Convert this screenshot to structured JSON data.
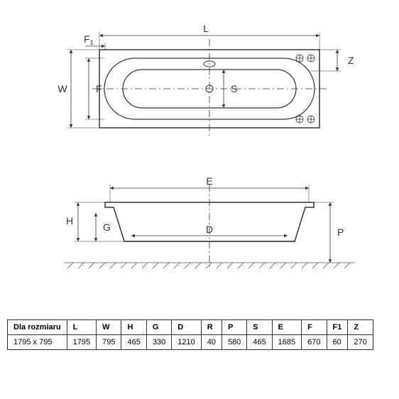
{
  "diagram": {
    "stroke_color": "#333333",
    "stroke_width": 1.2,
    "dash_pattern": "6 4",
    "background": "#ffffff",
    "hatch_color": "#555555"
  },
  "labels": {
    "L": "L",
    "W": "W",
    "F": "F",
    "F1": "F",
    "F1sub": "1",
    "Z": "Z",
    "S": "S",
    "E": "E",
    "H": "H",
    "G": "G",
    "D": "D",
    "P": "P"
  },
  "table": {
    "header_label": "Dla rozmiaru",
    "columns": [
      "L",
      "W",
      "H",
      "G",
      "D",
      "R",
      "P",
      "S",
      "E",
      "F",
      "F1",
      "Z"
    ],
    "row_label": "1795 x 795",
    "values": [
      "1795",
      "795",
      "465",
      "330",
      "1210",
      "40",
      "580",
      "465",
      "1685",
      "670",
      "60",
      "270"
    ]
  }
}
